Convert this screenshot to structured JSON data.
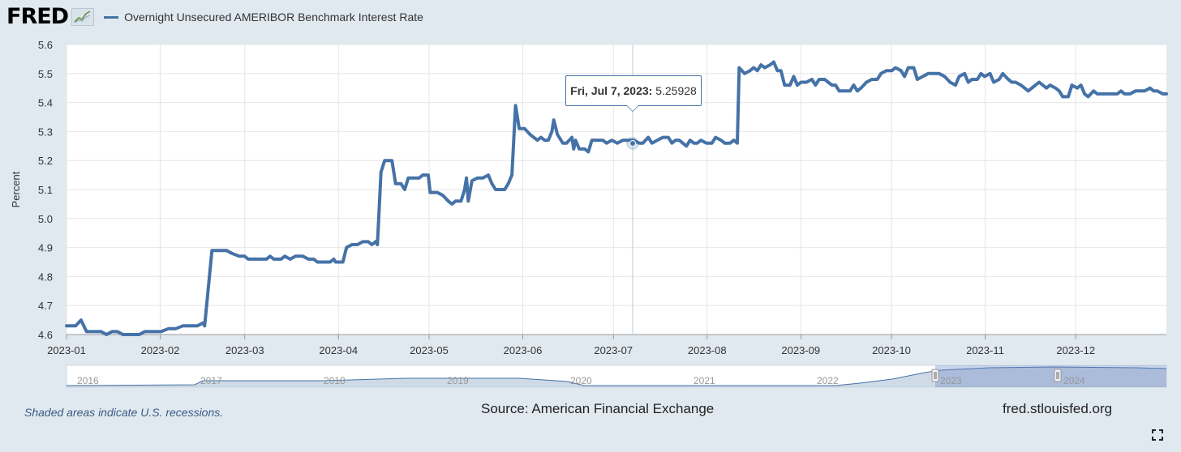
{
  "header": {
    "logo": "FRED",
    "series_title": "Overnight Unsecured AMERIBOR Benchmark Interest Rate",
    "series_color": "#4572a7"
  },
  "tooltip": {
    "date": "Fri, Jul 7, 2023:",
    "value": "5.25928"
  },
  "footer": {
    "recession_note": "Shaded areas indicate U.S. recessions.",
    "source": "Source: American Financial Exchange",
    "site": "fred.stlouisfed.org",
    "fullscreen_icon": "fullscreen-icon"
  },
  "chart_data": {
    "type": "line",
    "title": "Overnight Unsecured AMERIBOR Benchmark Interest Rate",
    "xlabel": "",
    "ylabel": "Percent",
    "ylim": [
      4.6,
      5.6
    ],
    "yticks": [
      "4.6",
      "4.7",
      "4.8",
      "4.9",
      "5.0",
      "5.1",
      "5.2",
      "5.3",
      "5.4",
      "5.5",
      "5.6"
    ],
    "xticks": [
      "2023-01",
      "2023-02",
      "2023-03",
      "2023-04",
      "2023-05",
      "2023-06",
      "2023-07",
      "2023-08",
      "2023-09",
      "2023-10",
      "2023-11",
      "2023-12"
    ],
    "grid": true,
    "series": [
      {
        "name": "Overnight Unsecured AMERIBOR Benchmark Interest Rate",
        "color": "#4572a7",
        "points": [
          [
            0,
            4.63
          ],
          [
            5,
            4.63
          ],
          [
            8,
            4.65
          ],
          [
            11,
            4.61
          ],
          [
            15,
            4.61
          ],
          [
            19,
            4.61
          ],
          [
            22,
            4.6
          ],
          [
            25,
            4.61
          ],
          [
            28,
            4.61
          ],
          [
            31,
            4.6
          ],
          [
            35,
            4.6
          ],
          [
            40,
            4.6
          ],
          [
            43,
            4.61
          ],
          [
            47,
            4.61
          ],
          [
            52,
            4.61
          ],
          [
            56,
            4.62
          ],
          [
            60,
            4.62
          ],
          [
            64,
            4.63
          ],
          [
            68,
            4.63
          ],
          [
            72,
            4.63
          ],
          [
            75,
            4.64
          ],
          [
            76,
            4.63
          ],
          [
            80,
            4.89
          ],
          [
            85,
            4.89
          ],
          [
            88,
            4.89
          ],
          [
            91,
            4.88
          ],
          [
            95,
            4.87
          ],
          [
            98,
            4.87
          ],
          [
            100,
            4.86
          ],
          [
            104,
            4.86
          ],
          [
            108,
            4.86
          ],
          [
            110,
            4.86
          ],
          [
            112,
            4.87
          ],
          [
            114,
            4.86
          ],
          [
            118,
            4.86
          ],
          [
            120,
            4.87
          ],
          [
            123,
            4.86
          ],
          [
            126,
            4.87
          ],
          [
            130,
            4.87
          ],
          [
            133,
            4.86
          ],
          [
            136,
            4.86
          ],
          [
            138,
            4.85
          ],
          [
            141,
            4.85
          ],
          [
            145,
            4.85
          ],
          [
            147,
            4.86
          ],
          [
            148,
            4.85
          ],
          [
            152,
            4.85
          ],
          [
            154,
            4.9
          ],
          [
            157,
            4.91
          ],
          [
            160,
            4.91
          ],
          [
            163,
            4.92
          ],
          [
            166,
            4.92
          ],
          [
            168,
            4.91
          ],
          [
            170,
            4.92
          ],
          [
            171,
            4.91
          ],
          [
            173,
            5.16
          ],
          [
            175,
            5.2
          ],
          [
            179,
            5.2
          ],
          [
            181,
            5.12
          ],
          [
            184,
            5.12
          ],
          [
            186,
            5.1
          ],
          [
            188,
            5.14
          ],
          [
            191,
            5.14
          ],
          [
            194,
            5.14
          ],
          [
            196,
            5.15
          ],
          [
            199,
            5.15
          ],
          [
            200,
            5.09
          ],
          [
            204,
            5.09
          ],
          [
            207,
            5.08
          ],
          [
            210,
            5.06
          ],
          [
            212,
            5.05
          ],
          [
            214,
            5.06
          ],
          [
            217,
            5.06
          ],
          [
            219,
            5.1
          ],
          [
            220,
            5.14
          ],
          [
            221,
            5.06
          ],
          [
            223,
            5.13
          ],
          [
            226,
            5.14
          ],
          [
            229,
            5.14
          ],
          [
            232,
            5.15
          ],
          [
            234,
            5.12
          ],
          [
            236,
            5.1
          ],
          [
            238,
            5.1
          ],
          [
            241,
            5.1
          ],
          [
            243,
            5.12
          ],
          [
            245,
            5.15
          ],
          [
            247,
            5.39
          ],
          [
            249,
            5.31
          ],
          [
            252,
            5.31
          ],
          [
            255,
            5.29
          ],
          [
            257,
            5.28
          ],
          [
            259,
            5.27
          ],
          [
            261,
            5.28
          ],
          [
            263,
            5.27
          ],
          [
            265,
            5.27
          ],
          [
            267,
            5.3
          ],
          [
            268,
            5.34
          ],
          [
            270,
            5.29
          ],
          [
            273,
            5.26
          ],
          [
            275,
            5.26
          ],
          [
            278,
            5.28
          ],
          [
            279,
            5.24
          ],
          [
            280,
            5.27
          ],
          [
            282,
            5.24
          ],
          [
            285,
            5.24
          ],
          [
            287,
            5.23
          ],
          [
            289,
            5.27
          ],
          [
            292,
            5.27
          ],
          [
            295,
            5.27
          ],
          [
            297,
            5.26
          ],
          [
            300,
            5.27
          ],
          [
            303,
            5.26
          ],
          [
            306,
            5.27
          ],
          [
            309,
            5.27
          ],
          [
            312,
            5.27
          ],
          [
            315,
            5.26
          ],
          [
            317,
            5.26
          ],
          [
            320,
            5.28
          ],
          [
            322,
            5.26
          ],
          [
            325,
            5.27
          ],
          [
            328,
            5.28
          ],
          [
            331,
            5.28
          ],
          [
            333,
            5.26
          ],
          [
            335,
            5.27
          ],
          [
            337,
            5.27
          ],
          [
            339,
            5.26
          ],
          [
            341,
            5.25
          ],
          [
            343,
            5.27
          ],
          [
            345,
            5.26
          ],
          [
            347,
            5.26
          ],
          [
            349,
            5.27
          ],
          [
            352,
            5.26
          ],
          [
            355,
            5.26
          ],
          [
            357,
            5.28
          ],
          [
            360,
            5.27
          ],
          [
            362,
            5.26
          ],
          [
            365,
            5.26
          ],
          [
            367,
            5.27
          ],
          [
            369,
            5.26
          ],
          [
            370,
            5.52
          ],
          [
            373,
            5.5
          ],
          [
            376,
            5.51
          ],
          [
            378,
            5.52
          ],
          [
            380,
            5.51
          ],
          [
            382,
            5.53
          ],
          [
            384,
            5.52
          ],
          [
            387,
            5.53
          ],
          [
            389,
            5.54
          ],
          [
            391,
            5.51
          ],
          [
            393,
            5.51
          ],
          [
            395,
            5.46
          ],
          [
            398,
            5.46
          ],
          [
            400,
            5.49
          ],
          [
            402,
            5.46
          ],
          [
            404,
            5.47
          ],
          [
            407,
            5.47
          ],
          [
            410,
            5.48
          ],
          [
            412,
            5.46
          ],
          [
            414,
            5.48
          ],
          [
            417,
            5.48
          ],
          [
            419,
            5.47
          ],
          [
            421,
            5.46
          ],
          [
            423,
            5.46
          ],
          [
            425,
            5.44
          ],
          [
            428,
            5.44
          ],
          [
            431,
            5.44
          ],
          [
            433,
            5.46
          ],
          [
            435,
            5.44
          ],
          [
            437,
            5.45
          ],
          [
            440,
            5.47
          ],
          [
            443,
            5.48
          ],
          [
            446,
            5.48
          ],
          [
            448,
            5.5
          ],
          [
            451,
            5.51
          ],
          [
            454,
            5.51
          ],
          [
            456,
            5.52
          ],
          [
            459,
            5.51
          ],
          [
            461,
            5.49
          ],
          [
            463,
            5.52
          ],
          [
            466,
            5.52
          ],
          [
            468,
            5.48
          ],
          [
            471,
            5.49
          ],
          [
            474,
            5.5
          ],
          [
            477,
            5.5
          ],
          [
            480,
            5.5
          ],
          [
            483,
            5.49
          ],
          [
            486,
            5.47
          ],
          [
            489,
            5.46
          ],
          [
            491,
            5.49
          ],
          [
            494,
            5.5
          ],
          [
            496,
            5.47
          ],
          [
            498,
            5.48
          ],
          [
            501,
            5.48
          ],
          [
            503,
            5.5
          ],
          [
            505,
            5.49
          ],
          [
            508,
            5.5
          ],
          [
            510,
            5.47
          ],
          [
            513,
            5.48
          ],
          [
            515,
            5.5
          ],
          [
            518,
            5.48
          ],
          [
            520,
            5.47
          ],
          [
            522,
            5.47
          ],
          [
            525,
            5.46
          ],
          [
            527,
            5.45
          ],
          [
            529,
            5.44
          ],
          [
            531,
            5.45
          ],
          [
            533,
            5.46
          ],
          [
            535,
            5.47
          ],
          [
            537,
            5.46
          ],
          [
            539,
            5.45
          ],
          [
            541,
            5.46
          ],
          [
            544,
            5.45
          ],
          [
            546,
            5.44
          ],
          [
            548,
            5.42
          ],
          [
            551,
            5.42
          ],
          [
            553,
            5.46
          ],
          [
            556,
            5.45
          ],
          [
            558,
            5.46
          ],
          [
            560,
            5.43
          ],
          [
            562,
            5.42
          ],
          [
            565,
            5.44
          ],
          [
            567,
            5.43
          ],
          [
            570,
            5.43
          ],
          [
            573,
            5.43
          ],
          [
            575,
            5.43
          ],
          [
            578,
            5.43
          ],
          [
            580,
            5.44
          ],
          [
            582,
            5.43
          ],
          [
            585,
            5.43
          ],
          [
            588,
            5.44
          ],
          [
            590,
            5.44
          ],
          [
            593,
            5.44
          ],
          [
            596,
            5.45
          ],
          [
            598,
            5.44
          ],
          [
            600,
            5.44
          ],
          [
            603,
            5.43
          ],
          [
            605,
            5.43
          ]
        ]
      }
    ],
    "navigator": {
      "labels": [
        "2016",
        "2017",
        "2018",
        "2019",
        "2020",
        "2021",
        "2022",
        "2023",
        "2024"
      ]
    },
    "annotations": [
      "Shaded areas indicate U.S. recessions."
    ]
  }
}
